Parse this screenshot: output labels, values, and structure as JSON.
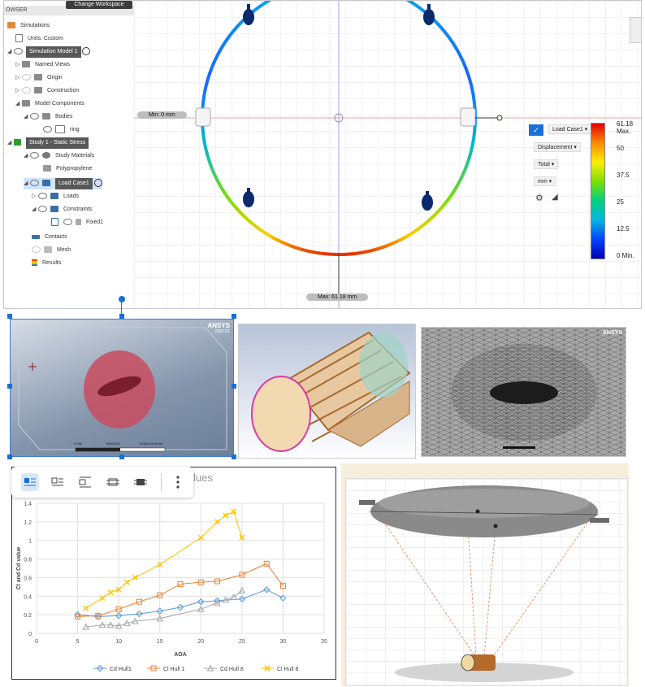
{
  "fusion": {
    "browser_label": "OWSER",
    "change_workspace": "Change Workspace",
    "tree": [
      {
        "label": "Simulations"
      },
      {
        "label": "Units: Custom"
      },
      {
        "label": "Simulation Model 1"
      },
      {
        "label": "Named Views"
      },
      {
        "label": "Origin"
      },
      {
        "label": "Construction"
      },
      {
        "label": "Model Components"
      },
      {
        "label": "Bodies"
      },
      {
        "label": "ring"
      },
      {
        "label": "Study 1 - Static Stress"
      },
      {
        "label": "Study Materials"
      },
      {
        "label": "Polypropylene"
      },
      {
        "label": "Load Case1"
      },
      {
        "label": "Loads"
      },
      {
        "label": "Constraints"
      },
      {
        "label": "Fixed1"
      },
      {
        "label": "Contacts"
      },
      {
        "label": "Mesh"
      },
      {
        "label": "Results"
      }
    ],
    "min_label": "Min: 0 mm",
    "max_label": "Max: 61.18 mm",
    "legend": {
      "load_case": "Load Case1",
      "result_type": "Displacement",
      "component": "Total",
      "unit": "mm",
      "ticks": [
        "61.18 Max.",
        "50",
        "37.5",
        "25",
        "12.5",
        "0 Min."
      ]
    }
  },
  "ansys": {
    "brand": "ANSYS",
    "version": "2020 R1",
    "scale_labels": [
      "0.000",
      "5000.000",
      "10000.000 (mm)"
    ]
  },
  "chart_data": {
    "type": "scatter",
    "title": "lues",
    "xlabel": "AOA",
    "ylabel": "Cl and Cd value",
    "xlim": [
      0,
      35
    ],
    "ylim": [
      0,
      1.4
    ],
    "xticks": [
      0,
      5,
      10,
      15,
      20,
      25,
      30,
      35
    ],
    "yticks": [
      0,
      0.2,
      0.4,
      0.6,
      0.8,
      1,
      1.2,
      1.4
    ],
    "grid": true,
    "legend_position": "bottom",
    "series": [
      {
        "name": "Cd Hull1",
        "marker": "diamond",
        "color": "#5b9bd5",
        "x": [
          5,
          7.5,
          10,
          12.5,
          15,
          17.5,
          20,
          22,
          25,
          28,
          30
        ],
        "y": [
          0.2,
          0.18,
          0.19,
          0.21,
          0.24,
          0.28,
          0.34,
          0.35,
          0.37,
          0.47,
          0.38
        ]
      },
      {
        "name": "Cl Hull 1",
        "marker": "square",
        "color": "#ed7d31",
        "x": [
          5,
          7.5,
          10,
          12.5,
          15,
          17.5,
          20,
          22,
          25,
          28,
          30
        ],
        "y": [
          0.18,
          0.19,
          0.26,
          0.34,
          0.41,
          0.53,
          0.55,
          0.56,
          0.63,
          0.75,
          0.51
        ]
      },
      {
        "name": "Cd Hull 8",
        "marker": "triangle",
        "color": "#a5a5a5",
        "x": [
          6,
          8,
          9,
          10,
          11,
          12,
          15,
          20,
          22,
          23,
          24,
          25
        ],
        "y": [
          0.07,
          0.09,
          0.09,
          0.08,
          0.11,
          0.13,
          0.16,
          0.26,
          0.33,
          0.36,
          0.39,
          0.46
        ]
      },
      {
        "name": "Cl Hull 8",
        "marker": "x",
        "color": "#ffc000",
        "x": [
          6,
          8,
          9,
          10,
          11,
          12,
          15,
          20,
          22,
          23,
          24,
          25
        ],
        "y": [
          0.27,
          0.38,
          0.44,
          0.47,
          0.55,
          0.6,
          0.74,
          1.03,
          1.2,
          1.27,
          1.31,
          1.03
        ]
      }
    ]
  },
  "colors": {
    "selection": "#1a6fd6",
    "accent": "#1a6fd6"
  }
}
